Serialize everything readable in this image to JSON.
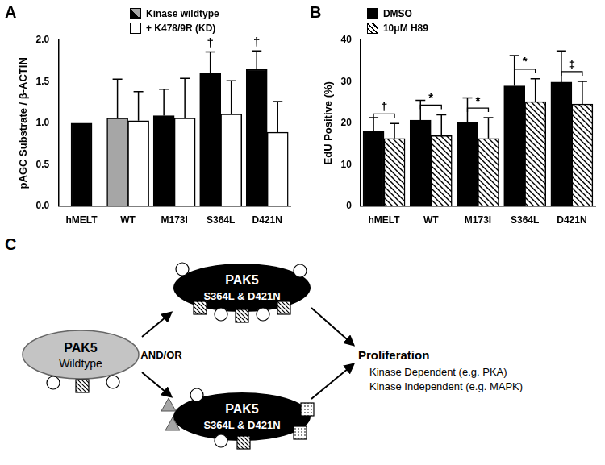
{
  "chart_data": [
    {
      "type": "bar",
      "panel_label": "A",
      "y_label": "pAGC Substrate / β-ACTIN",
      "categories": [
        "hMELT",
        "WT",
        "M173I",
        "S364L",
        "D421N"
      ],
      "series": [
        {
          "name": "Kinase wildtype",
          "colors": [
            "#000000",
            "#a6a6a6",
            "#000000",
            "#000000",
            "#000000"
          ],
          "values": [
            1.0,
            1.06,
            1.09,
            1.6,
            1.65
          ],
          "errors": [
            null,
            0.47,
            0.32,
            0.26,
            0.22
          ],
          "annotations": [
            null,
            null,
            null,
            "†",
            "†"
          ]
        },
        {
          "name": "+ K478/9R (KD)",
          "color": "#ffffff",
          "values": [
            null,
            1.03,
            1.06,
            1.11,
            0.89
          ],
          "errors": [
            null,
            0.35,
            0.48,
            0.4,
            0.37
          ]
        }
      ],
      "ylim": [
        0,
        2
      ],
      "yticks": [
        {
          "value": 0,
          "label": "0.0"
        },
        {
          "value": 0.5,
          "label": "0.5"
        },
        {
          "value": 1,
          "label": "1.0"
        },
        {
          "value": 1.5,
          "label": "1.5"
        },
        {
          "value": 2,
          "label": "2.0"
        }
      ],
      "grid": false,
      "legend": "top"
    },
    {
      "type": "bar",
      "panel_label": "B",
      "y_label": "EdU Positive (%)",
      "categories": [
        "hMELT",
        "WT",
        "M173I",
        "S364L",
        "D421N"
      ],
      "series": [
        {
          "name": "DMSO",
          "color": "#000000",
          "values": [
            18,
            20.7,
            20.3,
            29,
            29.9
          ],
          "errors": [
            3.3,
            4.8,
            5.8,
            7.3,
            7.5
          ]
        },
        {
          "name": "10μM H89",
          "color": "#000000",
          "marker": "hatched",
          "values": [
            16.3,
            17,
            16.3,
            25.2,
            24.6
          ],
          "errors": [
            3.6,
            5,
            5,
            5.5,
            5.5
          ]
        }
      ],
      "significance": [
        "†",
        "*",
        "*",
        "*",
        "‡"
      ],
      "ylim": [
        0,
        40
      ],
      "yticks": [
        0,
        10,
        20,
        30,
        40
      ],
      "grid": false,
      "legend": "top left"
    }
  ],
  "diagram": {
    "panel_label": "C",
    "wildtype": {
      "title": "PAK5",
      "subtitle": "Wildtype"
    },
    "mutants": [
      {
        "title": "PAK5",
        "subtitle": "S364L & D421N"
      },
      {
        "title": "PAK5",
        "subtitle": "S364L & D421N"
      }
    ],
    "connector": "AND/OR",
    "outcome": {
      "title": "Proliferation",
      "items": [
        "Kinase Dependent (e.g. PKA)",
        "Kinase Independent (e.g. MAPK)"
      ]
    }
  }
}
